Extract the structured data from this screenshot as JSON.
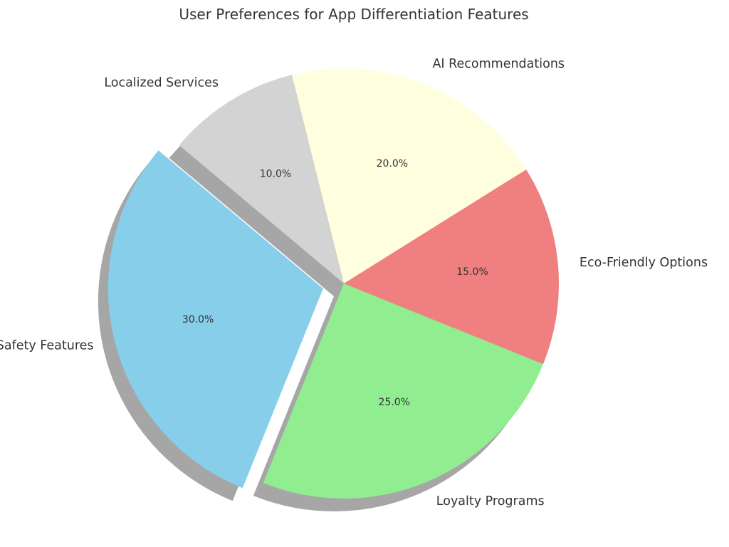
{
  "chart_data": {
    "type": "pie",
    "title": "User Preferences for App Differentiation Features",
    "start_angle_deg": 140,
    "direction": "counterclockwise",
    "shadow": true,
    "slices": [
      {
        "label": "Safety Features",
        "value": 30.0,
        "pct_text": "30.0%",
        "color": "#87CEEB",
        "exploded": true
      },
      {
        "label": "Loyalty Programs",
        "value": 25.0,
        "pct_text": "25.0%",
        "color": "#90EE90",
        "exploded": false
      },
      {
        "label": "Eco-Friendly Options",
        "value": 15.0,
        "pct_text": "15.0%",
        "color": "#F08080",
        "exploded": false
      },
      {
        "label": "AI Recommendations",
        "value": 20.0,
        "pct_text": "20.0%",
        "color": "#FFFFE0",
        "exploded": false
      },
      {
        "label": "Localized Services",
        "value": 10.0,
        "pct_text": "10.0%",
        "color": "#D3D3D3",
        "exploded": false
      }
    ]
  }
}
